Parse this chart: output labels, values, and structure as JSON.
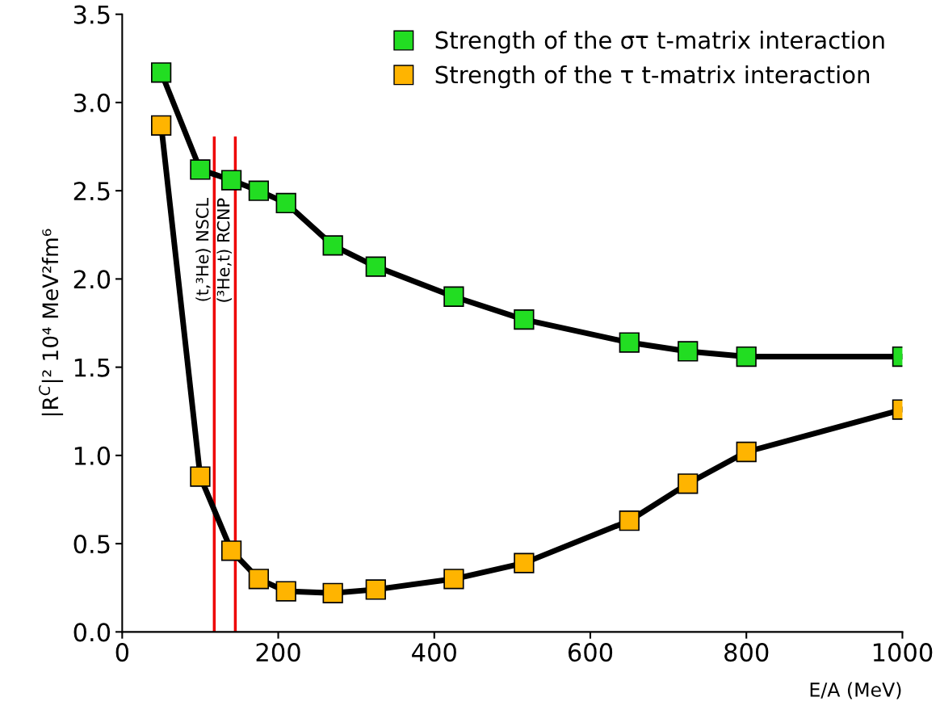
{
  "chart_data": {
    "type": "line",
    "xlabel": "E/A (MeV)",
    "ylabel": "|R$^{C}$|² 10⁴ MeV²fm⁶",
    "x": [
      50,
      100,
      140,
      175,
      210,
      270,
      325,
      425,
      515,
      650,
      725,
      800,
      1000
    ],
    "series": [
      {
        "name": "Strength of the στ t-matrix interaction",
        "color": "#22dd22",
        "values": [
          3.17,
          2.62,
          2.56,
          2.5,
          2.43,
          2.19,
          2.07,
          1.9,
          1.77,
          1.64,
          1.59,
          1.56,
          1.56
        ]
      },
      {
        "name": "Strength of the τ t-matrix interaction",
        "color": "#ffb400",
        "values": [
          2.87,
          0.88,
          0.46,
          0.3,
          0.23,
          0.22,
          0.24,
          0.3,
          0.39,
          0.63,
          0.84,
          1.02,
          1.26
        ]
      }
    ],
    "ref_lines": [
      {
        "axis": "x",
        "value": 118,
        "label": "(t,³He) NSCL",
        "color": "#ee0000"
      },
      {
        "axis": "x",
        "value": 145,
        "label": "(³He,t) RCNP",
        "color": "#ee0000"
      }
    ],
    "xlim": [
      0,
      1000
    ],
    "xticks": [
      0,
      200,
      400,
      600,
      800,
      1000
    ],
    "ylim": [
      0,
      3.5
    ],
    "yticks": [
      {
        "value": 0,
        "label": "0.0"
      },
      {
        "value": 0.5,
        "label": "0.5"
      },
      {
        "value": 1,
        "label": "1.0"
      },
      {
        "value": 1.5,
        "label": "1.5"
      },
      {
        "value": 2,
        "label": "2.0"
      },
      {
        "value": 2.5,
        "label": "2.5"
      },
      {
        "value": 3,
        "label": "3.0"
      },
      {
        "value": 3.5,
        "label": "3.5"
      }
    ],
    "marker": "square",
    "legend": "top right",
    "grid": false
  }
}
